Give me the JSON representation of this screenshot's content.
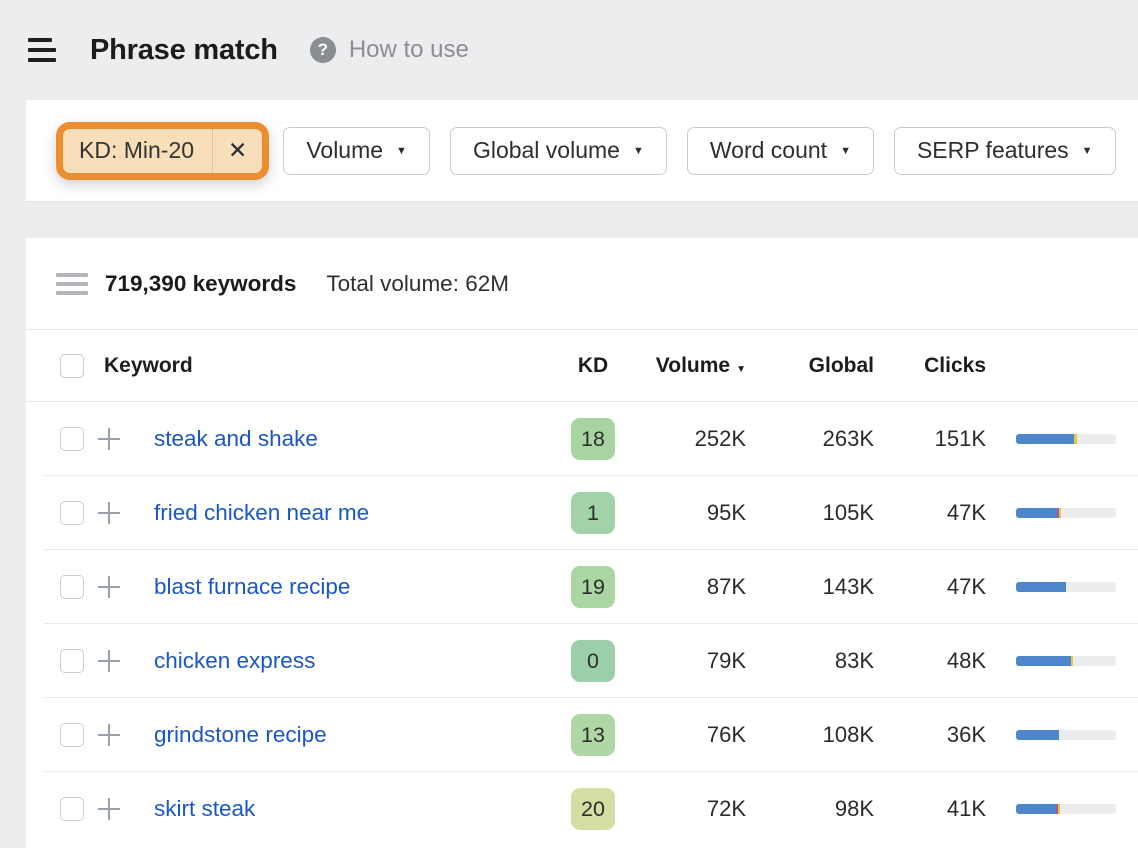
{
  "header": {
    "title": "Phrase match",
    "help_icon": "?",
    "help_label": "How to use"
  },
  "filters": {
    "caret_icon": "▼",
    "active_chip": {
      "label": "KD: Min-20",
      "close_icon": "✕"
    },
    "dropdowns": [
      {
        "label": "Volume"
      },
      {
        "label": "Global volume"
      },
      {
        "label": "Word count"
      },
      {
        "label": "SERP features"
      }
    ],
    "chip_colors": {
      "border": "#EC8E2F",
      "fill": "#F8DFBA"
    }
  },
  "stats": {
    "keywords_count": "719,390 keywords",
    "total_volume": "Total volume: 62M"
  },
  "table": {
    "columns": {
      "keyword": "Keyword",
      "kd": "KD",
      "volume": "Volume",
      "global": "Global",
      "clicks": "Clicks"
    },
    "sort_caret_icon": "▼",
    "bar_colors": {
      "blue": "#4e86cb",
      "magenta": "#a8559d",
      "yellow": "#eec43e",
      "track": "#eaecee"
    },
    "rows": [
      {
        "keyword": "steak and shake",
        "kd": "18",
        "kd_color": "#a8d4a2",
        "volume": "252K",
        "global": "263K",
        "clicks": "151K",
        "bar": {
          "blue": 58,
          "magenta": 0,
          "yellow": 3
        }
      },
      {
        "keyword": "fried chicken near me",
        "kd": "1",
        "kd_color": "#a2d2a8",
        "volume": "95K",
        "global": "105K",
        "clicks": "47K",
        "bar": {
          "blue": 41,
          "magenta": 2,
          "yellow": 2
        }
      },
      {
        "keyword": "blast furnace recipe",
        "kd": "19",
        "kd_color": "#abd5a3",
        "volume": "87K",
        "global": "143K",
        "clicks": "47K",
        "bar": {
          "blue": 50,
          "magenta": 0,
          "yellow": 0
        }
      },
      {
        "keyword": "chicken express",
        "kd": "0",
        "kd_color": "#9bcfaa",
        "volume": "79K",
        "global": "83K",
        "clicks": "48K",
        "bar": {
          "blue": 55,
          "magenta": 0,
          "yellow": 2
        }
      },
      {
        "keyword": "grindstone recipe",
        "kd": "13",
        "kd_color": "#afd7a5",
        "volume": "76K",
        "global": "108K",
        "clicks": "36K",
        "bar": {
          "blue": 43,
          "magenta": 0,
          "yellow": 0
        }
      },
      {
        "keyword": "skirt steak",
        "kd": "20",
        "kd_color": "#d2dea2",
        "volume": "72K",
        "global": "98K",
        "clicks": "41K",
        "bar": {
          "blue": 40,
          "magenta": 2,
          "yellow": 2
        }
      }
    ]
  }
}
